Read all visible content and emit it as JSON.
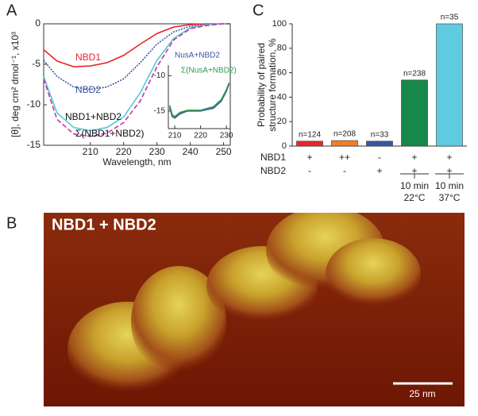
{
  "panel_labels": [
    "A",
    "B",
    "C"
  ],
  "chart_data": [
    {
      "type": "line",
      "ylabel": "[θ], deg cm² dmol⁻¹, x10³",
      "xlabel": "Wavelength, nm",
      "x": [
        196,
        200,
        205,
        210,
        215,
        220,
        225,
        230,
        235,
        240,
        245,
        250,
        252
      ],
      "xlim": [
        196,
        252
      ],
      "xticks": [
        210,
        220,
        230,
        240,
        250
      ],
      "ylim": [
        -15,
        0
      ],
      "yticks": [
        0,
        -5,
        -10,
        -15
      ],
      "series": [
        {
          "name": "NBD1",
          "color": "#e8262c",
          "dash": "",
          "values": [
            -3.2,
            -4.6,
            -5.3,
            -5.2,
            -4.8,
            -3.9,
            -2.5,
            -1.2,
            -0.4,
            -0.1,
            0,
            0,
            0
          ]
        },
        {
          "name": "NBD2",
          "color": "#3a55a5",
          "dash": "2 1.5",
          "values": [
            -4.5,
            -6.5,
            -7.8,
            -8.1,
            -7.8,
            -6.8,
            -4.8,
            -2.5,
            -1.0,
            -0.3,
            -0.1,
            0,
            0
          ]
        },
        {
          "name": "NBD1+NBD2",
          "color": "#55c8d8",
          "dash": "",
          "values": [
            -6.5,
            -11,
            -12.8,
            -13.2,
            -12.8,
            -11.5,
            -8.5,
            -4.5,
            -1.8,
            -0.5,
            -0.1,
            0,
            0
          ]
        },
        {
          "name": "Σ(NBD1+NBD2)",
          "color": "#c03a9c",
          "dash": "6 3",
          "values": [
            -6.8,
            -11.8,
            -13.6,
            -13.9,
            -13.5,
            -12.2,
            -9.5,
            -5.3,
            -2.0,
            -0.6,
            -0.2,
            0,
            0
          ]
        }
      ]
    },
    {
      "type": "line",
      "x": [
        208,
        209,
        210,
        212,
        215,
        220,
        225,
        228,
        230,
        231
      ],
      "xlim": [
        207.5,
        231.5
      ],
      "xticks": [
        210,
        220,
        230
      ],
      "ylim": [
        -17.5,
        -8.5
      ],
      "yticks": [
        -10,
        -15
      ],
      "series": [
        {
          "name": "NusA+NBD2",
          "color": "#3a55a5",
          "dash": "",
          "values": [
            -14.5,
            -15.8,
            -16.0,
            -15.4,
            -15.0,
            -15.0,
            -14.6,
            -13.6,
            -12.2,
            -11.2
          ]
        },
        {
          "name": "Σ(NusA+NBD2)",
          "color": "#2e9a48",
          "dash": "",
          "values": [
            -14.2,
            -15.5,
            -15.8,
            -15.2,
            -14.9,
            -14.9,
            -14.4,
            -13.4,
            -12.0,
            -11.0
          ]
        }
      ]
    },
    {
      "type": "bar",
      "ylabel": [
        "Probability of paired",
        "structure formation, %"
      ],
      "categories": [
        null,
        null,
        null,
        null,
        null
      ],
      "values": [
        4,
        4.5,
        4,
        54,
        100
      ],
      "annotations": [
        "n=124",
        "n=208",
        "n=33",
        "n=238",
        "n=35"
      ],
      "colors": [
        "#e8262c",
        "#f07e2a",
        "#3a55a5",
        "#17884a",
        "#5ecbdf"
      ],
      "ylim": [
        0,
        100
      ],
      "yticks": [
        0,
        20,
        40,
        60,
        80,
        100
      ],
      "row_labels": [
        "NBD1",
        "NBD2"
      ],
      "rows": [
        [
          "+",
          "++",
          "-",
          "+",
          "+"
        ],
        [
          "-",
          "-",
          "+",
          "+",
          "+"
        ]
      ],
      "conditions": [
        null,
        null,
        null,
        [
          "10 min",
          "22°C"
        ],
        [
          "10 min",
          "37°C"
        ]
      ]
    }
  ],
  "panel_b": {
    "title": "NBD1 + NBD2",
    "scale_bar": "25 nm"
  }
}
